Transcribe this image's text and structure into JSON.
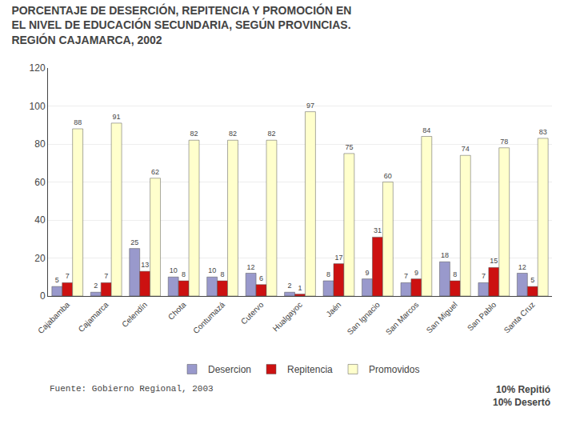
{
  "chart_data": {
    "type": "bar",
    "title": "PORCENTAJE DE DESERCIÓN, REPITENCIA Y PROMOCIÓN EN\nEL NIVEL DE EDUCACIÓN SECUNDARIA, SEGÚN PROVINCIAS.\nREGIÓN CAJAMARCA, 2002",
    "categories": [
      "Cajabamba",
      "Cajamarca",
      "Celendín",
      "Chota",
      "Contumazá",
      "Cutervo",
      "Hualgayoc",
      "Jaén",
      "San Ignacio",
      "San Marcos",
      "San Miguel",
      "San Pablo",
      "Santa Cruz"
    ],
    "series": [
      {
        "name": "Desercion",
        "color": "#9999cc",
        "values": [
          5,
          2,
          25,
          10,
          10,
          12,
          2,
          8,
          9,
          7,
          18,
          7,
          12
        ]
      },
      {
        "name": "Repitencia",
        "color": "#cc1111",
        "values": [
          7,
          7,
          13,
          8,
          8,
          6,
          1,
          17,
          31,
          9,
          8,
          15,
          5
        ]
      },
      {
        "name": "Promovidos",
        "color": "#ffffcc",
        "values": [
          88,
          91,
          62,
          82,
          82,
          82,
          97,
          75,
          60,
          84,
          74,
          78,
          83
        ]
      }
    ],
    "ylim": [
      0,
      120
    ],
    "yticks": [
      0,
      20,
      40,
      60,
      80,
      100,
      120
    ],
    "grid": true,
    "legend": "bottom",
    "data_labels": true,
    "annotations": [
      "Fuente: Gobierno Regional, 2003",
      "10% Repitió\n10% Desertó"
    ]
  }
}
